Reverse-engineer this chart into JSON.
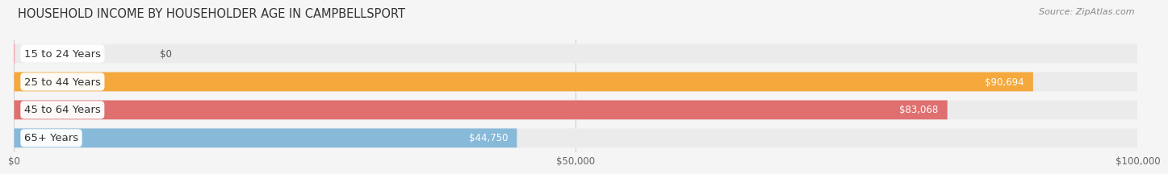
{
  "title": "HOUSEHOLD INCOME BY HOUSEHOLDER AGE IN CAMPBELLSPORT",
  "source": "Source: ZipAtlas.com",
  "categories": [
    "15 to 24 Years",
    "25 to 44 Years",
    "45 to 64 Years",
    "65+ Years"
  ],
  "values": [
    0,
    90694,
    83068,
    44750
  ],
  "bar_colors": [
    "#f4a0b0",
    "#f5a83c",
    "#e07070",
    "#87b9d9"
  ],
  "bar_bg_color": "#ebebeb",
  "value_labels": [
    "$0",
    "$90,694",
    "$83,068",
    "$44,750"
  ],
  "x_tick_labels": [
    "$0",
    "$50,000",
    "$100,000"
  ],
  "x_tick_values": [
    0,
    50000,
    100000
  ],
  "xmax": 100000,
  "title_fontsize": 10.5,
  "source_fontsize": 8,
  "label_fontsize": 9.5,
  "value_fontsize": 8.5,
  "tick_fontsize": 8.5,
  "background_color": "#f5f5f5"
}
